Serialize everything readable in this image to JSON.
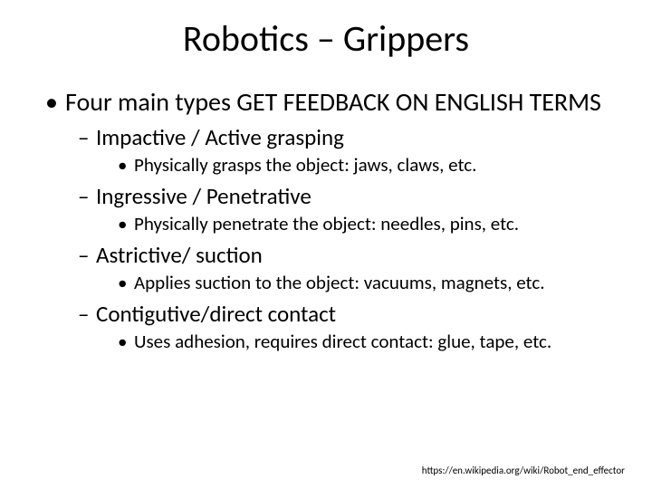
{
  "title": "Robotics – Grippers",
  "level1_text": "Four main types GET FEEDBACK ON ENGLISH TERMS",
  "items": [
    {
      "heading": "Impactive / Active grasping",
      "detail": "Physically grasps the object: jaws, claws, etc."
    },
    {
      "heading": "Ingressive / Penetrative",
      "detail": "Physically penetrate the object: needles, pins, etc."
    },
    {
      "heading": "Astrictive/ suction",
      "detail": "Applies suction to the object: vacuums, magnets, etc."
    },
    {
      "heading": "Contigutive/direct contact",
      "detail": "Uses adhesion, requires direct contact: glue, tape, etc."
    }
  ],
  "footer": "https://en.wikipedia.org/wiki/Robot_end_effector",
  "style": {
    "background_color": "#ffffff",
    "text_color": "#000000",
    "title_fontsize": 40,
    "level1_fontsize": 28,
    "level2_fontsize": 25,
    "level3_fontsize": 21,
    "footer_fontsize": 11,
    "font_family": "Calibri"
  }
}
